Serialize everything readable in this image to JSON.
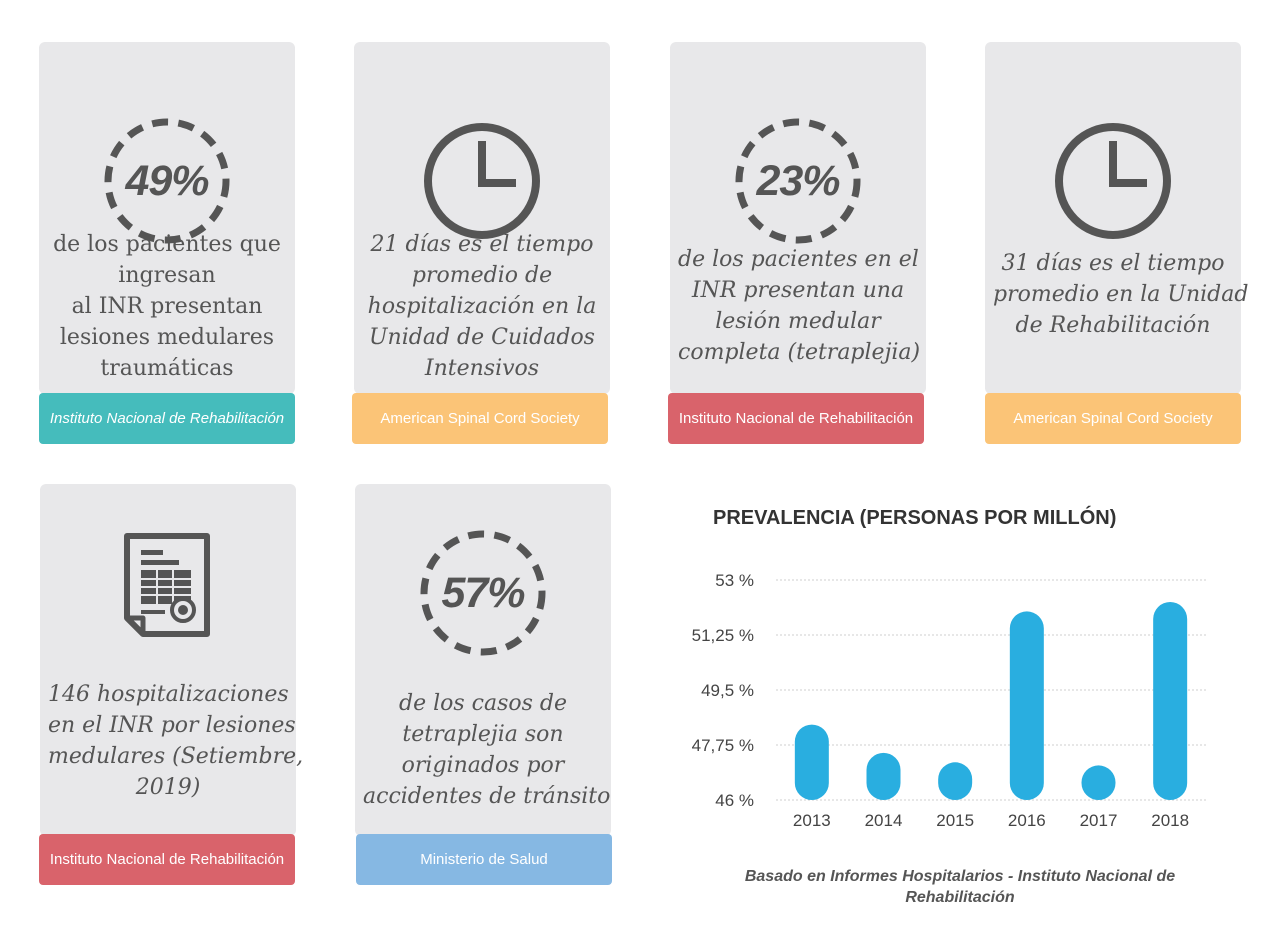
{
  "cards": [
    {
      "id": "card1",
      "icon": "percent-ring-icon",
      "percent": "49%",
      "text_lines": [
        "de los pacientes que",
        "ingresan",
        "al INR presentan",
        "lesiones medulares",
        "traumáticas"
      ],
      "source": "Instituto Nacional de Rehabilitación",
      "source_color": "#45bcbc"
    },
    {
      "id": "card2",
      "icon": "clock-icon",
      "text_lines": [
        "21 días es el tiempo",
        "promedio de",
        "hospitalización en la",
        "Unidad de Cuidados",
        "Intensivos"
      ],
      "source": "American Spinal Cord Society",
      "source_color": "#fbc477"
    },
    {
      "id": "card3",
      "icon": "percent-ring-icon",
      "percent": "23%",
      "text_lines": [
        "de los pacientes en el",
        "INR presentan una",
        "lesión medular",
        "completa (tetraplejia)"
      ],
      "source": "Instituto Nacional de Rehabilitación",
      "source_color": "#d9636b"
    },
    {
      "id": "card4",
      "icon": "clock-icon",
      "text_lines": [
        "31 días es el tiempo",
        "promedio en la Unidad",
        "de Rehabilitación"
      ],
      "source": "American Spinal Cord Society",
      "source_color": "#fbc477"
    },
    {
      "id": "card5",
      "icon": "document-icon",
      "text_lines": [
        "146 hospitalizaciones",
        "en el INR por lesiones",
        "medulares (Setiembre,",
        "2019)"
      ],
      "source": "Instituto Nacional de Rehabilitación",
      "source_color": "#d9636b"
    },
    {
      "id": "card6",
      "icon": "percent-ring-icon",
      "percent": "57%",
      "text_lines": [
        "de los casos de",
        "tetraplejia son",
        "originados por",
        "accidentes de tránsito"
      ],
      "source": "Ministerio de Salud",
      "source_color": "#86b8e3"
    }
  ],
  "colors": {
    "card_bg": "#e8e8ea",
    "icon": "#555555",
    "bar": "#29aee0"
  },
  "chart_data": {
    "type": "bar",
    "title": "PREVALENCIA (PERSONAS POR MILLÓN)",
    "categories": [
      "2013",
      "2014",
      "2015",
      "2016",
      "2017",
      "2018"
    ],
    "values": [
      48.4,
      47.5,
      47.2,
      52.0,
      47.1,
      52.3
    ],
    "ylim": [
      46,
      53
    ],
    "yticks": [
      46,
      47.75,
      49.5,
      51.25,
      53
    ],
    "ytick_labels": [
      "46 %",
      "47,75 %",
      "49,5 %",
      "51,25 %",
      "53 %"
    ],
    "grid": true,
    "xlabel": "",
    "ylabel": "",
    "note": "Basado en Informes Hospitalarios - Instituto Nacional de Rehabilitación"
  }
}
